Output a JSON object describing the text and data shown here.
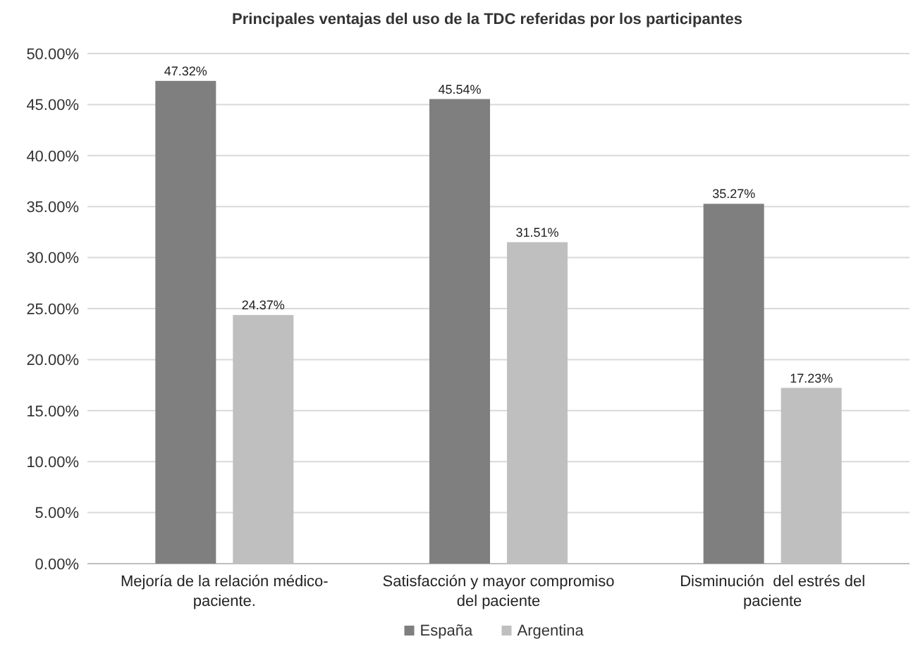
{
  "chart_data": {
    "type": "bar",
    "title": "Principales ventajas del uso de la TDC referidas por los participantes",
    "categories": [
      "Mejoría de la relación médico-paciente.",
      "Satisfacción y mayor compromiso del paciente",
      "Disminución  del estrés del paciente"
    ],
    "series": [
      {
        "name": "España",
        "color": "#7f7f7f",
        "values": [
          47.32,
          45.54,
          35.27
        ],
        "value_labels": [
          "47.32%",
          "45.54%",
          "35.27%"
        ]
      },
      {
        "name": "Argentina",
        "color": "#bfbfbf",
        "values": [
          24.37,
          31.51,
          17.23
        ],
        "value_labels": [
          "24.37%",
          "31.51%",
          "17.23%"
        ]
      }
    ],
    "ylim": [
      0,
      50
    ],
    "yticks": [
      {
        "value": 0,
        "label": "0.00%"
      },
      {
        "value": 5,
        "label": "5.00%"
      },
      {
        "value": 10,
        "label": "10.00%"
      },
      {
        "value": 15,
        "label": "15.00%"
      },
      {
        "value": 20,
        "label": "20.00%"
      },
      {
        "value": 25,
        "label": "25.00%"
      },
      {
        "value": 30,
        "label": "30.00%"
      },
      {
        "value": 35,
        "label": "35.00%"
      },
      {
        "value": 40,
        "label": "40.00%"
      },
      {
        "value": 45,
        "label": "45.00%"
      },
      {
        "value": 50,
        "label": "50.00%"
      }
    ],
    "grid": "y",
    "legend": "bottom"
  }
}
